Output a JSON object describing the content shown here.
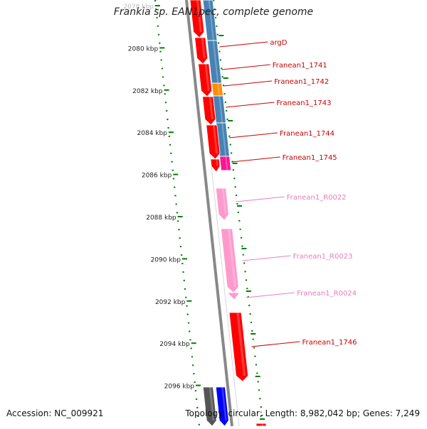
{
  "title": "Frankia sp. EAN1pec, complete genome",
  "accession": "Accession: NC_009921",
  "topology": "Topology: circular; Length: 8,982,042 bp; Genes: 7,249",
  "colors": {
    "gene_red": "#ff0000",
    "rna_pink": "#ff99cc",
    "cds_blue": "#4682b4",
    "orange": "#ff8c00",
    "magenta": "#ff1493",
    "tick_green": "#008000",
    "label_dark_red": "#cc0000",
    "label_pink": "#e87fb7",
    "backbone_gray": "#888888",
    "blue": "#0000ff"
  },
  "scale_labels": [
    {
      "kbp": 2078,
      "text": "2078 kbp"
    },
    {
      "kbp": 2080,
      "text": "2080 kbp"
    },
    {
      "kbp": 2082,
      "text": "2082 kbp"
    },
    {
      "kbp": 2084,
      "text": "2084 kbp"
    },
    {
      "kbp": 2086,
      "text": "2086 kbp"
    },
    {
      "kbp": 2088,
      "text": "2088 kbp"
    },
    {
      "kbp": 2090,
      "text": "2090 kbp"
    },
    {
      "kbp": 2092,
      "text": "2092 kbp"
    },
    {
      "kbp": 2094,
      "text": "2094 kbp"
    },
    {
      "kbp": 2096,
      "text": "2096 kbp"
    }
  ],
  "gene_labels": [
    {
      "text": "argD",
      "type": "cds"
    },
    {
      "text": "Franean1_1741",
      "type": "cds"
    },
    {
      "text": "Franean1_1742",
      "type": "cds"
    },
    {
      "text": "Franean1_1743",
      "type": "cds"
    },
    {
      "text": "Franean1_1744",
      "type": "cds"
    },
    {
      "text": "Franean1_1745",
      "type": "cds"
    },
    {
      "text": "Franean1_R0022",
      "type": "rna"
    },
    {
      "text": "Franean1_R0023",
      "type": "rna"
    },
    {
      "text": "Franean1_R0024",
      "type": "rna"
    },
    {
      "text": "Franean1_1746",
      "type": "cds"
    }
  ]
}
